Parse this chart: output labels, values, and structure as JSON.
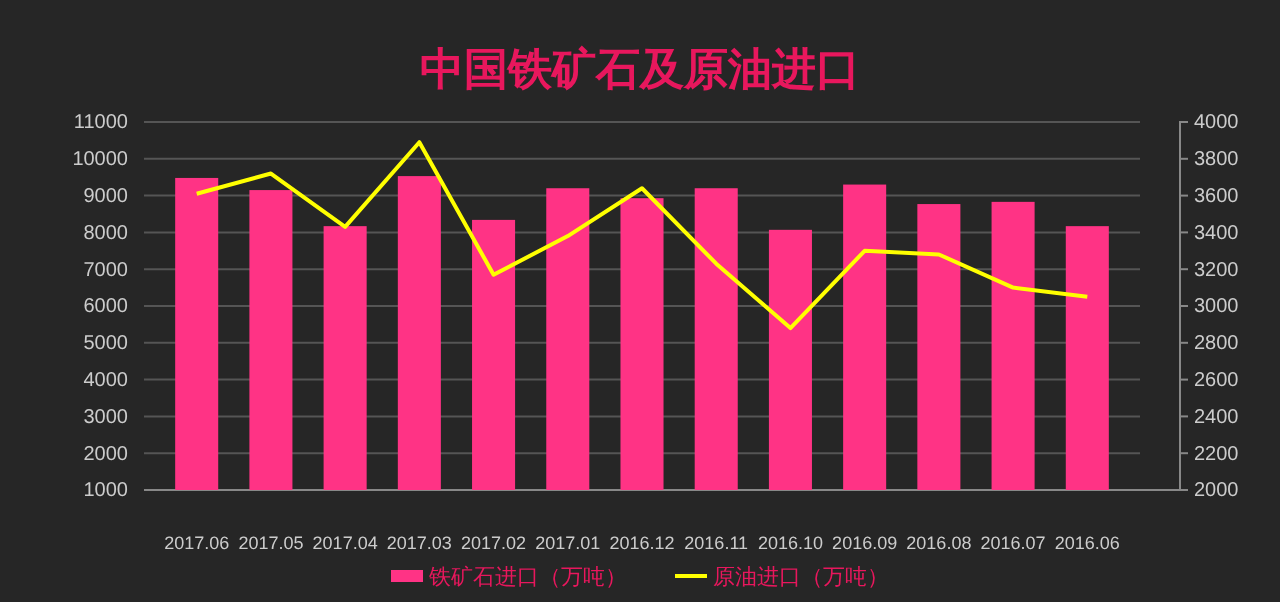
{
  "chart_data": {
    "type": "bar",
    "title": "中国铁矿石及原油进口",
    "categories": [
      "2017.06",
      "2017.05",
      "2017.04",
      "2017.03",
      "2017.02",
      "2017.01",
      "2016.12",
      "2016.11",
      "2016.10",
      "2016.09",
      "2016.08",
      "2016.07",
      "2016.06"
    ],
    "series": [
      {
        "name": "铁矿石进口（万吨）",
        "color": "#ff3385",
        "values": [
          9480,
          9150,
          8170,
          9530,
          8340,
          9200,
          8930,
          9200,
          8070,
          9300,
          8770,
          8830,
          8170
        ]
      },
      {
        "name": "原油进口（万吨）",
        "type": "line",
        "axis": "y2",
        "color": "#ffff00",
        "values": [
          3610,
          3720,
          3430,
          3890,
          3170,
          3380,
          3640,
          3230,
          2880,
          3300,
          3280,
          3100,
          3050
        ]
      }
    ],
    "ylim": [
      1000,
      11000
    ],
    "yticks": [
      1000,
      2000,
      3000,
      4000,
      5000,
      6000,
      7000,
      8000,
      9000,
      10000,
      11000
    ],
    "y2lim": [
      2000,
      4000
    ],
    "y2ticks": [
      2000,
      2200,
      2400,
      2600,
      2800,
      3000,
      3200,
      3400,
      3600,
      3800,
      4000
    ],
    "grid": "y",
    "legend": "bottom",
    "marker": "none"
  }
}
